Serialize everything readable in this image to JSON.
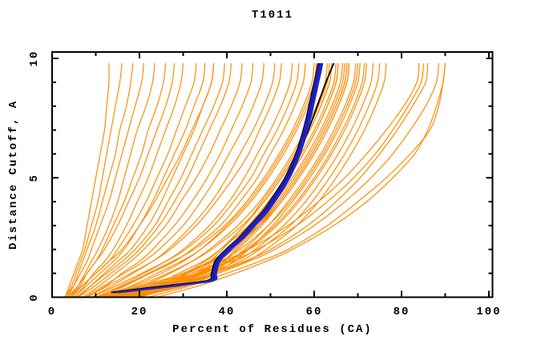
{
  "title": "T1011",
  "chart_data": {
    "type": "line",
    "title": "T1011",
    "xlabel": "Percent of Residues (CA)",
    "ylabel": "Distance Cutoff, A",
    "xlim": [
      0,
      100
    ],
    "ylim": [
      0,
      10
    ],
    "grid": false,
    "legend": "none",
    "x_major_ticks": [
      0,
      20,
      40,
      60,
      80,
      100
    ],
    "x_minor_ticks": [
      10,
      30,
      50,
      70,
      90
    ],
    "x_tick_labels": [
      "0",
      "20",
      "40",
      "60",
      "80",
      "100"
    ],
    "y_major_ticks": [
      0,
      5,
      10
    ],
    "y_minor_ticks": [
      1,
      2,
      3,
      4,
      6,
      7,
      8,
      9
    ],
    "y_tick_labels": [
      "0",
      "5",
      "10"
    ],
    "colors": {
      "orange": "#ff8c00",
      "navy": "#2222cc",
      "black": "#000000",
      "frame": "#000000",
      "background": "#ffffff"
    },
    "series_groups": [
      {
        "name": "model-curves-orange",
        "color_key": "orange",
        "line_width": 1.2,
        "cutoffs": [
          0,
          0.5,
          1,
          1.5,
          2,
          3,
          4,
          5,
          6,
          7,
          8,
          9,
          9.8
        ],
        "curves": [
          [
            3,
            4,
            5,
            6,
            7,
            8,
            9,
            10,
            11,
            12,
            12.5,
            13,
            13
          ],
          [
            3,
            4.5,
            5.5,
            6.5,
            7.5,
            9,
            10.5,
            11.5,
            12.5,
            13.5,
            14.5,
            15.5,
            16
          ],
          [
            3.5,
            5,
            6,
            7,
            8,
            10,
            11.5,
            13,
            14.5,
            15.5,
            17,
            18,
            18.5
          ],
          [
            3,
            5,
            6.5,
            8,
            9,
            11,
            13,
            14.5,
            16,
            17.5,
            19,
            20.5,
            21
          ],
          [
            4,
            6,
            7.5,
            9,
            10.5,
            13,
            15,
            16.5,
            18,
            19.5,
            21.5,
            23,
            23.5
          ],
          [
            4,
            6.5,
            8,
            10,
            11.5,
            14,
            16.5,
            18.5,
            20.5,
            22,
            24,
            25.5,
            26
          ],
          [
            3.5,
            6,
            8,
            10,
            12,
            15,
            17.5,
            20,
            22,
            24,
            26,
            27.5,
            28
          ],
          [
            5,
            7.5,
            9.5,
            12,
            14,
            17,
            19.5,
            22,
            24,
            26,
            28,
            29.5,
            30
          ],
          [
            4.5,
            7,
            10,
            13,
            15,
            18.5,
            21.5,
            24,
            26.5,
            28.5,
            30.5,
            32.5,
            33
          ],
          [
            5,
            8,
            11,
            14,
            16.5,
            20,
            23,
            25.5,
            28,
            30.5,
            32.5,
            34.5,
            35
          ],
          [
            6,
            9,
            12,
            15,
            18,
            22,
            25,
            27.5,
            30,
            32.5,
            34.5,
            36.5,
            37
          ],
          [
            4,
            7,
            10,
            13,
            16,
            20,
            23.5,
            26.5,
            29.5,
            32,
            34.5,
            36.5,
            37
          ],
          [
            5.5,
            9,
            12.5,
            16,
            19,
            23.5,
            26.5,
            29.5,
            32,
            34.5,
            37,
            39,
            39.5
          ],
          [
            6,
            10,
            13.5,
            17,
            20,
            24.5,
            28,
            31,
            33.5,
            36,
            38.5,
            40.5,
            41
          ],
          [
            7,
            11,
            14.5,
            18,
            21,
            26,
            29.5,
            33,
            36,
            38.5,
            41,
            43,
            43.5
          ],
          [
            8,
            12.5,
            16,
            20,
            23,
            28,
            32,
            35.5,
            38.5,
            41,
            43.5,
            45.5,
            46
          ],
          [
            7.5,
            12,
            16.5,
            21,
            24.5,
            30,
            34,
            37.5,
            40.5,
            43.5,
            46,
            48,
            48.5
          ],
          [
            9,
            14,
            18.5,
            23,
            26.5,
            32,
            36.5,
            40,
            43,
            46,
            48.5,
            50.5,
            51
          ],
          [
            8,
            13,
            18,
            23,
            27,
            33,
            37.5,
            41.5,
            45,
            47.5,
            50,
            52,
            52.5
          ],
          [
            10,
            16,
            21,
            26,
            30,
            36,
            40.5,
            44,
            47,
            50,
            52.5,
            54.5,
            55
          ],
          [
            9,
            15,
            20.5,
            26,
            30.5,
            37,
            41.5,
            45.5,
            48.5,
            51.5,
            54,
            56,
            56.5
          ],
          [
            11,
            17,
            22.5,
            28,
            32,
            38.5,
            43,
            47,
            50,
            53,
            55.5,
            57.5,
            58
          ],
          [
            10,
            16.5,
            22,
            27.5,
            32.5,
            39.5,
            44.5,
            48.5,
            52,
            55,
            57.5,
            59.5,
            60
          ],
          [
            12,
            18.5,
            24,
            29.5,
            34,
            40.5,
            45.5,
            49.5,
            53,
            56,
            58.5,
            60.5,
            61
          ],
          [
            10,
            19,
            25,
            30,
            34,
            40,
            45,
            49,
            52.5,
            55.5,
            58,
            60,
            60.5
          ],
          [
            12,
            21,
            27,
            32,
            36,
            42.5,
            47.5,
            51.5,
            55,
            58,
            60.5,
            62.5,
            63
          ],
          [
            13,
            23,
            29,
            34.5,
            38.5,
            45,
            50,
            54,
            57.5,
            60.5,
            63,
            65,
            65.5
          ],
          [
            14,
            25,
            31,
            36.5,
            40.5,
            47,
            52,
            56,
            59.5,
            62.5,
            65,
            67,
            67.5
          ],
          [
            15,
            26,
            33,
            38.5,
            43,
            49.5,
            54.5,
            58.5,
            62,
            65,
            67.5,
            69.5,
            70
          ],
          [
            16,
            28,
            35,
            40.5,
            45,
            51.5,
            56.5,
            60.5,
            64,
            67,
            69.5,
            71.5,
            72
          ],
          [
            11,
            20,
            26.5,
            32,
            36.5,
            43.5,
            48.5,
            52.5,
            56,
            59,
            61.5,
            63.5,
            64
          ],
          [
            13,
            24,
            30.5,
            36,
            40.5,
            47.5,
            52.5,
            56.5,
            60,
            63,
            65.5,
            67.5,
            68
          ],
          [
            17,
            29,
            36,
            42,
            46.5,
            53,
            58,
            62,
            65.5,
            68.5,
            71,
            73,
            73.5
          ],
          [
            18,
            30,
            37,
            43,
            47.5,
            54.5,
            59.5,
            63.5,
            67,
            70,
            72.5,
            74.5,
            75
          ],
          [
            15,
            27,
            34,
            40,
            44.5,
            51,
            56,
            60,
            63.5,
            66.5,
            69,
            71,
            71.5
          ],
          [
            19,
            31,
            38,
            44.5,
            49,
            56,
            61,
            65,
            68.5,
            71.5,
            74,
            76,
            76.5
          ],
          [
            13,
            24,
            33,
            37,
            40,
            45,
            49.5,
            53.5,
            57,
            60,
            62.5,
            64.5,
            65
          ],
          [
            14,
            26,
            34,
            38,
            41,
            46.5,
            51,
            55,
            58.5,
            61.5,
            64,
            66,
            66.5
          ],
          [
            12,
            22,
            31,
            36,
            39,
            44,
            48.5,
            52.5,
            56,
            59,
            61.5,
            63.5,
            64
          ],
          [
            15,
            27,
            35,
            39.5,
            42.5,
            48,
            52.5,
            56.5,
            60,
            63,
            65.5,
            67.5,
            68
          ],
          [
            13.5,
            25,
            33.5,
            38,
            41.5,
            47,
            51.5,
            55.5,
            59,
            62,
            64.5,
            66.5,
            67
          ],
          [
            14.5,
            26.5,
            34.5,
            39,
            42,
            47.5,
            52,
            56,
            59.5,
            62.5,
            65,
            67,
            67.5
          ],
          [
            12.5,
            23,
            32,
            36.5,
            40,
            45.5,
            50,
            54,
            57.5,
            60.5,
            63,
            65,
            65.5
          ],
          [
            16,
            28,
            36,
            40.5,
            44,
            49.5,
            54,
            58,
            61.5,
            64.5,
            67,
            69,
            69.5
          ],
          [
            11,
            21,
            30,
            35,
            38.5,
            44,
            48,
            52,
            55.5,
            58.5,
            61,
            63,
            63.5
          ],
          [
            17,
            29,
            37,
            41.5,
            45,
            50.5,
            55,
            59,
            62.5,
            65.5,
            68,
            70,
            70.5
          ],
          [
            18,
            27,
            34,
            41,
            47,
            56,
            63,
            69,
            74,
            78,
            81.5,
            84.5,
            85
          ],
          [
            20,
            30,
            38,
            45,
            51,
            60,
            67,
            73,
            78,
            82,
            85.5,
            88,
            88.5
          ],
          [
            22,
            32,
            40,
            47.5,
            54,
            63,
            70,
            76.5,
            82,
            86.5,
            88.5,
            89.5,
            90
          ],
          [
            16,
            25,
            32,
            39,
            45,
            54,
            61,
            67,
            72,
            76.5,
            80.5,
            83.5,
            84
          ],
          [
            24,
            34,
            42,
            49,
            55,
            64.5,
            72,
            78,
            83,
            86,
            88,
            89.5,
            90
          ],
          [
            19,
            29,
            37,
            44,
            50,
            58.5,
            65,
            70.5,
            75,
            79,
            82.5,
            85.5,
            86
          ]
        ]
      },
      {
        "name": "reference-curves-black",
        "color_key": "black",
        "line_width": 1.8,
        "cutoffs": [
          0.2,
          0.35,
          0.5,
          0.7,
          1,
          1.5,
          2,
          2.5,
          3,
          3.5,
          4,
          4.5,
          5,
          5.5,
          6,
          6.5,
          7,
          7.5,
          8,
          8.5,
          9,
          9.5,
          9.8
        ],
        "curves": [
          [
            14,
            21,
            28,
            36,
            36.9,
            37.7,
            40.2,
            43.2,
            45.8,
            48.3,
            50.3,
            52.1,
            53.9,
            55.3,
            56.5,
            57.6,
            58.7,
            59.7,
            60.7,
            61.7,
            62.7,
            63.8,
            64.5
          ],
          [
            13.5,
            20,
            27,
            35.5,
            36.5,
            37.3,
            39.8,
            42.8,
            45.3,
            47.8,
            49.8,
            51.6,
            53.3,
            54.6,
            55.8,
            56.7,
            57.5,
            58.2,
            58.8,
            59.4,
            60,
            60.6,
            60.9
          ],
          [
            14.8,
            21.8,
            28.8,
            36.3,
            37,
            37.8,
            40.3,
            43.3,
            45.9,
            48.4,
            50.4,
            52.2,
            53.8,
            55.1,
            56.2,
            57.1,
            57.9,
            58.6,
            59.2,
            59.8,
            60.4,
            61,
            61.3
          ]
        ]
      },
      {
        "name": "highlight-curves-navy",
        "color_key": "navy",
        "line_width": 1.8,
        "cutoffs": [
          0.2,
          0.35,
          0.5,
          0.7,
          1,
          1.5,
          2,
          2.5,
          3,
          3.5,
          4,
          4.5,
          5,
          5.5,
          6,
          6.5,
          7,
          7.5,
          8,
          8.5,
          9,
          9.5,
          9.8
        ],
        "curves": [
          [
            15,
            22,
            29,
            36.5,
            37.2,
            38,
            40.5,
            43.5,
            46,
            48.5,
            50.5,
            52.3,
            54,
            55.3,
            56.4,
            57.3,
            58.1,
            58.8,
            59.4,
            60,
            60.6,
            61.2,
            61.5
          ],
          [
            15.5,
            22.5,
            29.5,
            37,
            37.6,
            38.4,
            41,
            44,
            46.5,
            49,
            51,
            52.8,
            54.4,
            55.7,
            56.8,
            57.7,
            58.5,
            59.2,
            59.8,
            60.4,
            61,
            61.6,
            61.9
          ],
          [
            14.5,
            21.5,
            28.5,
            36,
            36.8,
            37.6,
            40,
            43,
            45.5,
            48,
            50,
            51.8,
            53.5,
            54.8,
            56,
            56.9,
            57.7,
            58.4,
            59,
            59.6,
            60.2,
            60.8,
            61.1
          ],
          [
            15.2,
            22.2,
            29.2,
            36.7,
            37.4,
            38.2,
            40.7,
            43.7,
            46.2,
            48.7,
            50.7,
            52.5,
            54.2,
            55.5,
            56.6,
            57.5,
            58.3,
            59,
            59.6,
            60.2,
            60.8,
            61.4,
            61.7
          ]
        ]
      }
    ]
  }
}
